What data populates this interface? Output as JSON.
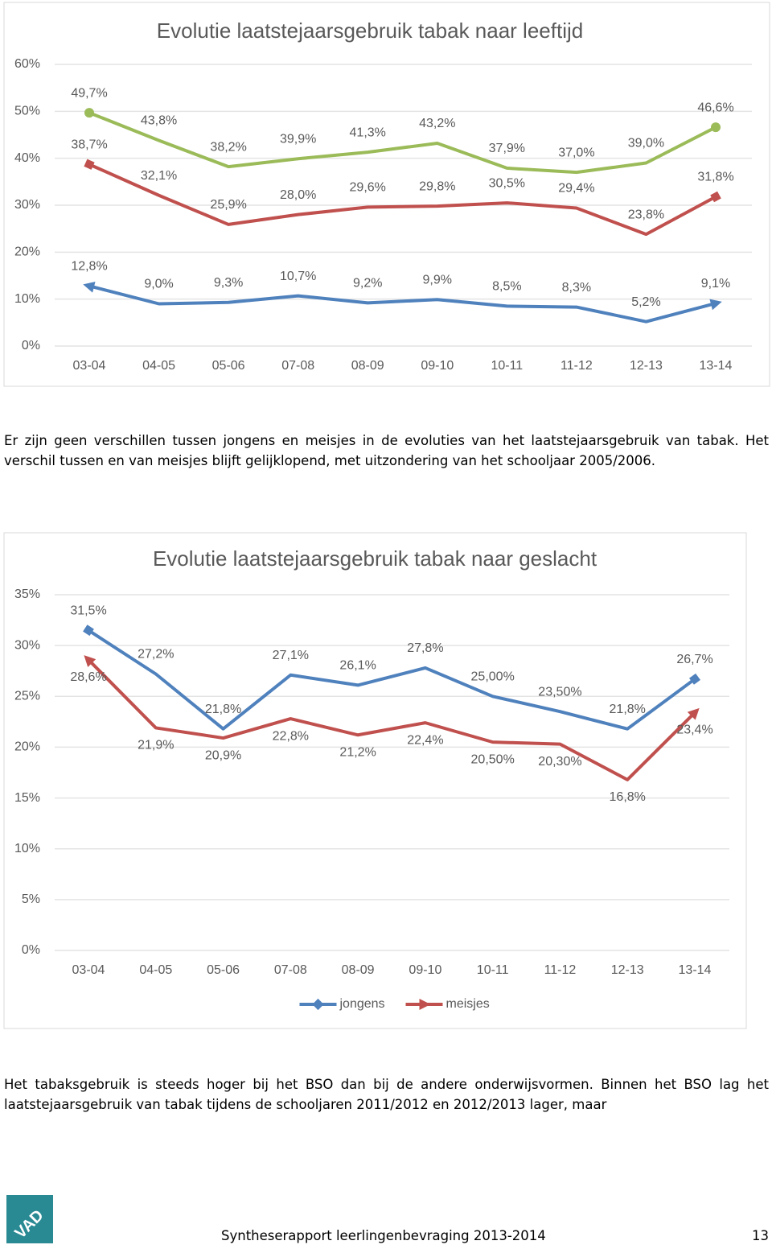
{
  "chart_data": [
    {
      "type": "line",
      "title": "Evolutie laatstejaarsgebruik tabak naar leeftijd",
      "categories": [
        "03-04",
        "04-05",
        "05-06",
        "07-08",
        "08-09",
        "09-10",
        "10-11",
        "11-12",
        "12-13",
        "13-14"
      ],
      "series": [
        {
          "color": "#9bbb59",
          "marker": "circle",
          "values": [
            49.7,
            43.8,
            38.2,
            39.9,
            41.3,
            43.2,
            37.9,
            37.0,
            39.0,
            46.6
          ],
          "value_labels": [
            "49,7%",
            "43,8%",
            "38,2%",
            "39,9%",
            "41,3%",
            "43,2%",
            "37,9%",
            "37,0%",
            "39,0%",
            "46,6%"
          ]
        },
        {
          "color": "#c0504d",
          "marker": "square",
          "values": [
            38.7,
            32.1,
            25.9,
            28.0,
            29.6,
            29.8,
            30.5,
            29.4,
            23.8,
            31.8
          ],
          "value_labels": [
            "38,7%",
            "32,1%",
            "25,9%",
            "28,0%",
            "29,6%",
            "29,8%",
            "30,5%",
            "29,4%",
            "23,8%",
            "31,8%"
          ]
        },
        {
          "color": "#4f81bd",
          "marker": "arrow",
          "values": [
            12.8,
            9.0,
            9.3,
            10.7,
            9.2,
            9.9,
            8.5,
            8.3,
            5.2,
            9.1
          ],
          "value_labels": [
            "12,8%",
            "9,0%",
            "9,3%",
            "10,7%",
            "9,2%",
            "9,9%",
            "8,5%",
            "8,3%",
            "5,2%",
            "9,1%"
          ]
        }
      ],
      "ylim": [
        0,
        60
      ],
      "yticks": [
        {
          "value": 0,
          "label": "0%"
        },
        {
          "value": 10,
          "label": "10%"
        },
        {
          "value": 20,
          "label": "20%"
        },
        {
          "value": 30,
          "label": "30%"
        },
        {
          "value": 40,
          "label": "40%"
        },
        {
          "value": 50,
          "label": "50%"
        },
        {
          "value": 60,
          "label": "60%"
        }
      ],
      "grid": true
    },
    {
      "type": "line",
      "title": "Evolutie laatstejaarsgebruik tabak naar geslacht",
      "categories": [
        "03-04",
        "04-05",
        "05-06",
        "07-08",
        "08-09",
        "09-10",
        "10-11",
        "11-12",
        "12-13",
        "13-14"
      ],
      "series": [
        {
          "name": "jongens",
          "color": "#4f81bd",
          "marker": "square",
          "label_side": "above",
          "values": [
            31.5,
            27.2,
            21.8,
            27.1,
            26.1,
            27.8,
            25.0,
            23.5,
            21.8,
            26.7
          ],
          "value_labels": [
            "31,5%",
            "27,2%",
            "21,8%",
            "27,1%",
            "26,1%",
            "27,8%",
            "25,00%",
            "23,50%",
            "21,8%",
            "26,7%"
          ]
        },
        {
          "name": "meisjes",
          "color": "#c0504d",
          "marker": "arrow",
          "label_side": "below",
          "values": [
            28.6,
            21.9,
            20.9,
            22.8,
            21.2,
            22.4,
            20.5,
            20.3,
            16.8,
            23.4
          ],
          "value_labels": [
            "28,6%",
            "21,9%",
            "20,9%",
            "22,8%",
            "21,2%",
            "22,4%",
            "20,50%",
            "20,30%",
            "16,8%",
            "23,4%"
          ]
        }
      ],
      "ylim": [
        0,
        35
      ],
      "yticks": [
        {
          "value": 0,
          "label": "0%"
        },
        {
          "value": 5,
          "label": "5%"
        },
        {
          "value": 10,
          "label": "10%"
        },
        {
          "value": 15,
          "label": "15%"
        },
        {
          "value": 20,
          "label": "20%"
        },
        {
          "value": 25,
          "label": "25%"
        },
        {
          "value": 30,
          "label": "30%"
        },
        {
          "value": 35,
          "label": "35%"
        }
      ],
      "grid": true,
      "legend": "bottom"
    }
  ],
  "paragraphs": [
    "Er zijn geen verschillen tussen jongens en meisjes in de evoluties van het laatstejaarsgebruik van tabak. Het verschil tussen en van meisjes blijft gelijklopend, met uitzondering van het schooljaar 2005/2006.",
    "Het tabaksgebruik is steeds hoger bij het BSO dan bij de andere onderwijsvormen. Binnen het BSO lag het laatstejaarsgebruik van tabak tijdens de schooljaren 2011/2012 en 2012/2013 lager, maar"
  ],
  "footer": {
    "logo": "VAD",
    "title": "Syntheserapport leerlingenbevraging 2013-2014",
    "page": "13"
  }
}
